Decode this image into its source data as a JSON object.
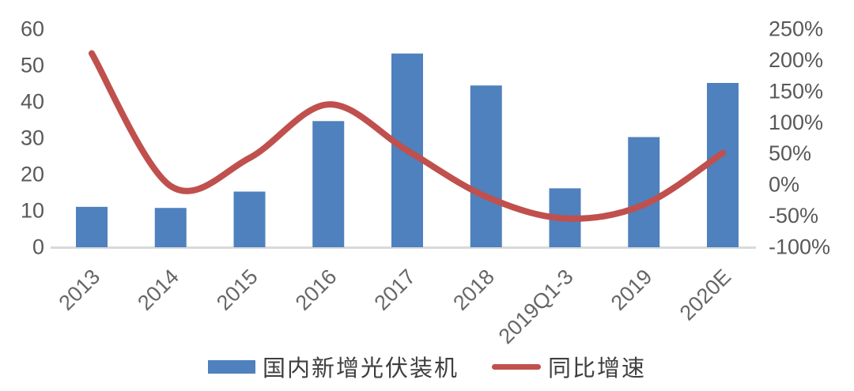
{
  "chart_data": {
    "type": "combo",
    "categories": [
      "2013",
      "2014",
      "2015",
      "2016",
      "2017",
      "2018",
      "2019Q1-3",
      "2019",
      "2020E"
    ],
    "series": [
      {
        "name": "国内新增光伏装机",
        "type": "bar",
        "axis": "left",
        "color": "#4E81BD",
        "values": [
          10.9,
          10.6,
          15.1,
          34.5,
          53.1,
          44.3,
          16.0,
          30.1,
          45.0
        ]
      },
      {
        "name": "同比增速",
        "type": "line",
        "axis": "right",
        "color": "#C0504D",
        "values": [
          210,
          -3,
          42,
          128,
          54,
          -20,
          -55,
          -33,
          50
        ]
      }
    ],
    "left_axis": {
      "min": 0,
      "max": 60,
      "step": 10,
      "ticks": [
        0,
        10,
        20,
        30,
        40,
        50,
        60
      ]
    },
    "right_axis": {
      "min": -100,
      "max": 250,
      "step": 50,
      "unit": "%",
      "ticks": [
        -100,
        -50,
        0,
        50,
        100,
        150,
        200,
        250
      ]
    },
    "title": "",
    "xlabel": "",
    "ylabel": "",
    "grid": false,
    "legend_position": "bottom"
  },
  "colors": {
    "bar": "#4E81BD",
    "line": "#C0504D",
    "axis_text": "#595959",
    "x_label_text": "#666666",
    "baseline": "#D9D9D9",
    "legend_text": "#3F3F3F",
    "background": "#FFFFFF"
  }
}
